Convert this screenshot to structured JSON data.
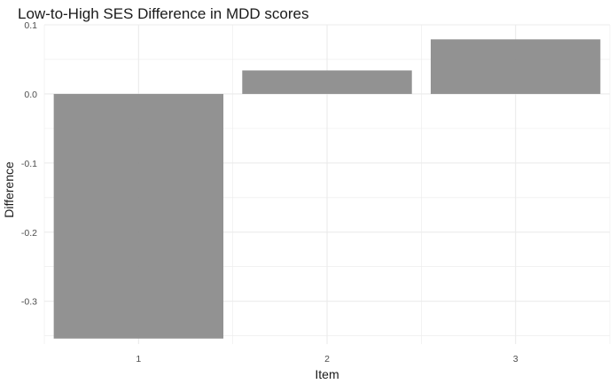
{
  "chart_data": {
    "type": "bar",
    "title": "Low-to-High SES Difference in MDD scores",
    "xlabel": "Item",
    "ylabel": "Difference",
    "categories": [
      "1",
      "2",
      "3"
    ],
    "values": [
      -0.354,
      0.034,
      0.079
    ],
    "ylim": [
      -0.362,
      0.1
    ],
    "yticks": [
      0.1,
      0.0,
      -0.1,
      -0.2,
      -0.3
    ],
    "ytick_labels": [
      "0.1",
      "0.0",
      "-0.1",
      "-0.2",
      "-0.3"
    ],
    "grid": true,
    "legend": "none",
    "bar_color": "#8c8c8c",
    "grid_color": "#ebebeb"
  }
}
